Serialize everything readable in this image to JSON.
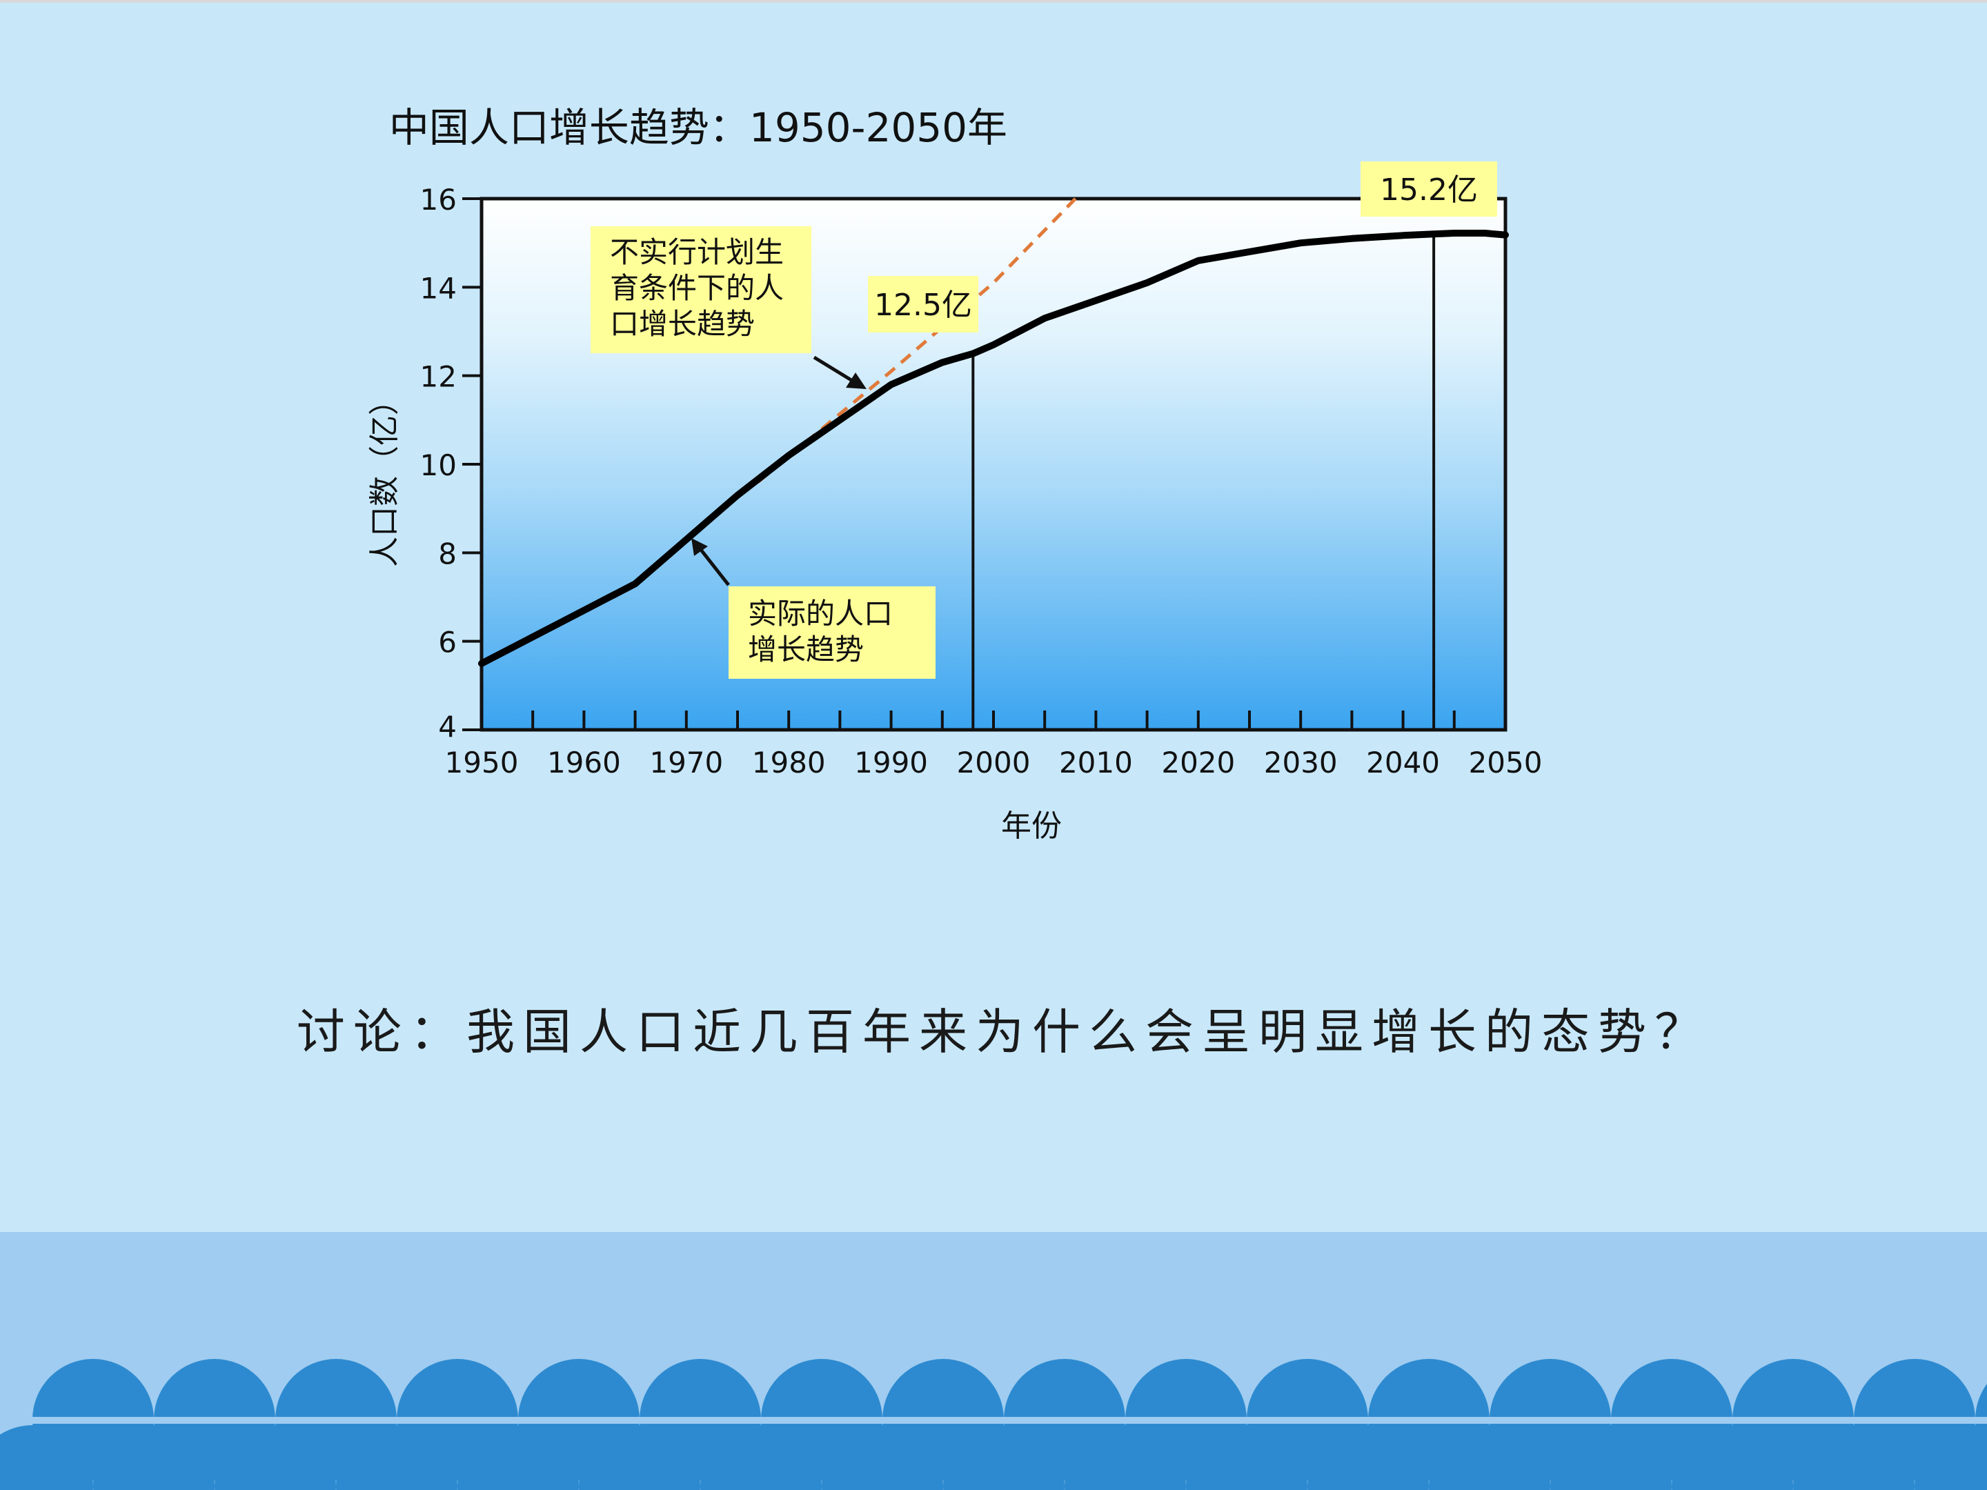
{
  "slide": {
    "question": "讨论：我国人口近几百年来为什么会呈明显增长的态势？"
  },
  "colors": {
    "background": "#c8e8fa",
    "plot_top": "#ffffff",
    "plot_bottom": "#3aa4f0",
    "callout_fill": "#ffff99",
    "dashed_line": "#e07a3a",
    "wave_band": "#9fccf0",
    "wave_scale": "#2d8ad0"
  },
  "chart_data": {
    "type": "line",
    "title": "中国人口增长趋势：1950-2050年",
    "xlabel": "年份",
    "ylabel": "人口数（亿）",
    "xlim": [
      1950,
      2050
    ],
    "ylim": [
      4,
      16
    ],
    "x_ticks": [
      1950,
      1960,
      1970,
      1980,
      1990,
      2000,
      2010,
      2020,
      2030,
      2040,
      2050
    ],
    "y_ticks": [
      4,
      6,
      8,
      10,
      12,
      14,
      16
    ],
    "grid": false,
    "series": [
      {
        "name": "实际的人口增长趋势",
        "style": "solid",
        "x": [
          1950,
          1955,
          1960,
          1965,
          1970,
          1972,
          1975,
          1980,
          1985,
          1990,
          1995,
          1998,
          2000,
          2005,
          2010,
          2015,
          2020,
          2025,
          2030,
          2035,
          2040,
          2043,
          2045,
          2048,
          2050
        ],
        "y": [
          5.5,
          6.1,
          6.7,
          7.3,
          8.3,
          8.7,
          9.3,
          10.2,
          11.0,
          11.8,
          12.3,
          12.5,
          12.7,
          13.3,
          13.7,
          14.1,
          14.6,
          14.8,
          15.0,
          15.1,
          15.17,
          15.2,
          15.22,
          15.22,
          15.18
        ]
      },
      {
        "name": "不实行计划生育条件下的人口增长趋势",
        "style": "dashed",
        "x": [
          1977,
          1990,
          2000,
          2008
        ],
        "y": [
          9.6,
          12.1,
          14.1,
          16.0
        ]
      }
    ],
    "markers": [
      {
        "x": 1998,
        "y": 12.5,
        "label": "12.5亿"
      },
      {
        "x": 2043,
        "y": 15.2,
        "label": "15.2亿"
      }
    ],
    "annotations": [
      {
        "text_lines": [
          "不实行计划生",
          "育条件下的人",
          "口增长趋势"
        ],
        "target_series": 1
      },
      {
        "text_lines": [
          "实际的人口",
          "增长趋势"
        ],
        "target_series": 0
      }
    ]
  }
}
